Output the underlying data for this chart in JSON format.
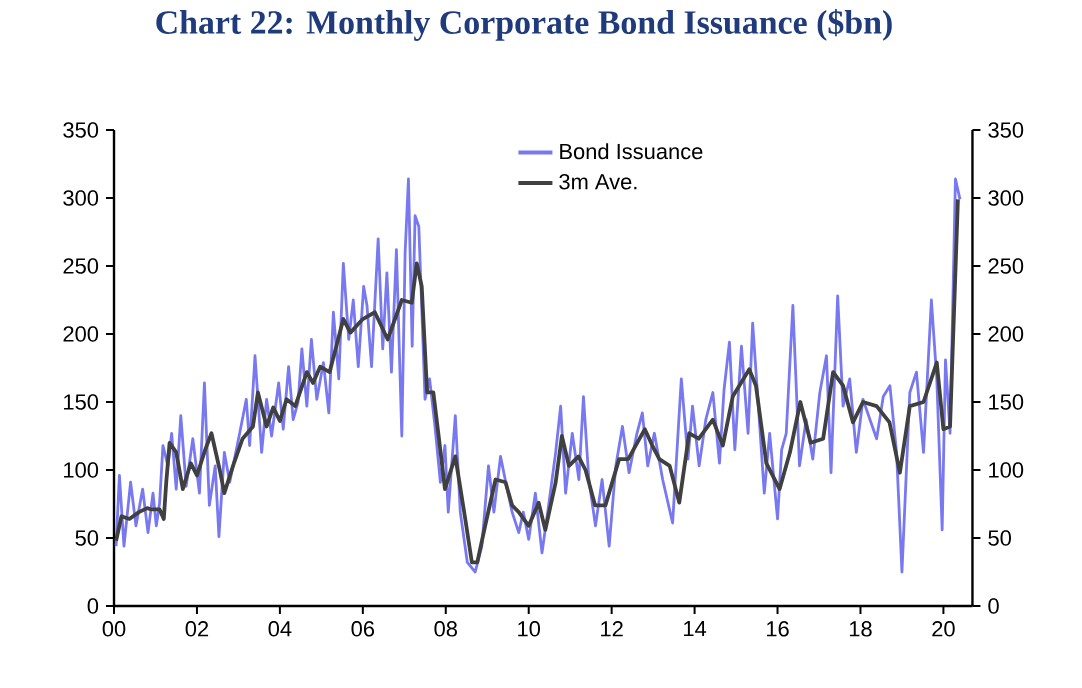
{
  "chart_data": {
    "type": "line",
    "title": "Chart 22: Monthly Corporate Bond Issuance ($bn)",
    "series": [
      {
        "name": "Bond Issuance",
        "color": "#7878f0",
        "x": [
          2000.05,
          2000.13,
          2000.24,
          2000.4,
          2000.53,
          2000.69,
          2000.82,
          2000.94,
          2001.02,
          2001.1,
          2001.18,
          2001.3,
          2001.39,
          2001.5,
          2001.61,
          2001.74,
          2001.9,
          2002.06,
          2002.18,
          2002.3,
          2002.44,
          2002.53,
          2002.66,
          2002.79,
          2003.03,
          2003.19,
          2003.27,
          2003.4,
          2003.56,
          2003.68,
          2003.8,
          2003.97,
          2004.08,
          2004.21,
          2004.32,
          2004.44,
          2004.53,
          2004.65,
          2004.76,
          2004.89,
          2005.05,
          2005.18,
          2005.29,
          2005.42,
          2005.53,
          2005.66,
          2005.77,
          2005.89,
          2006.02,
          2006.1,
          2006.21,
          2006.37,
          2006.48,
          2006.58,
          2006.69,
          2006.81,
          2006.94,
          2007.02,
          2007.1,
          2007.19,
          2007.26,
          2007.35,
          2007.5,
          2007.61,
          2007.74,
          2007.87,
          2007.98,
          2008.06,
          2008.23,
          2008.35,
          2008.52,
          2008.71,
          2008.87,
          2009.03,
          2009.16,
          2009.32,
          2009.48,
          2009.6,
          2009.76,
          2009.87,
          2010.0,
          2010.16,
          2010.32,
          2010.48,
          2010.65,
          2010.77,
          2010.89,
          2011.05,
          2011.21,
          2011.32,
          2011.45,
          2011.61,
          2011.77,
          2011.94,
          2012.1,
          2012.26,
          2012.42,
          2012.61,
          2012.74,
          2012.87,
          2013.03,
          2013.23,
          2013.47,
          2013.68,
          2013.84,
          2013.95,
          2014.11,
          2014.27,
          2014.44,
          2014.6,
          2014.71,
          2014.84,
          2014.97,
          2015.13,
          2015.29,
          2015.4,
          2015.56,
          2015.68,
          2015.81,
          2016.0,
          2016.1,
          2016.21,
          2016.37,
          2016.53,
          2016.69,
          2016.85,
          2017.02,
          2017.18,
          2017.29,
          2017.45,
          2017.58,
          2017.74,
          2017.9,
          2018.06,
          2018.23,
          2018.39,
          2018.55,
          2018.71,
          2018.87,
          2019.0,
          2019.19,
          2019.35,
          2019.52,
          2019.71,
          2019.84,
          2019.97,
          2020.05,
          2020.16,
          2020.29,
          2020.4
        ],
        "values": [
          44,
          96,
          44,
          91,
          59,
          86,
          54,
          83,
          59,
          76,
          118,
          103,
          127,
          86,
          140,
          88,
          123,
          83,
          164,
          74,
          103,
          51,
          113,
          91,
          127,
          152,
          118,
          184,
          113,
          152,
          125,
          164,
          130,
          176,
          137,
          150,
          189,
          147,
          196,
          152,
          179,
          142,
          216,
          167,
          252,
          196,
          225,
          176,
          235,
          221,
          176,
          270,
          189,
          245,
          172,
          262,
          125,
          260,
          314,
          191,
          287,
          279,
          152,
          167,
          132,
          91,
          118,
          69,
          140,
          69,
          32,
          25,
          44,
          103,
          69,
          110,
          86,
          69,
          54,
          69,
          49,
          83,
          39,
          74,
          113,
          147,
          83,
          127,
          93,
          154,
          93,
          59,
          93,
          44,
          103,
          132,
          98,
          127,
          142,
          103,
          127,
          93,
          61,
          167,
          108,
          147,
          103,
          137,
          157,
          105,
          159,
          194,
          115,
          191,
          127,
          208,
          137,
          83,
          127,
          64,
          115,
          127,
          221,
          103,
          137,
          108,
          157,
          184,
          98,
          228,
          147,
          167,
          113,
          152,
          137,
          123,
          154,
          162,
          113,
          25,
          157,
          172,
          113,
          225,
          167,
          56,
          181,
          127,
          314,
          299
        ]
      },
      {
        "name": "3m Ave.",
        "color": "#404040",
        "x": [
          2000.05,
          2000.18,
          2000.37,
          2000.6,
          2000.8,
          2000.9,
          2001.1,
          2001.2,
          2001.26,
          2001.34,
          2001.5,
          2001.66,
          2001.85,
          2002.0,
          2002.2,
          2002.35,
          2002.55,
          2002.66,
          2002.87,
          2003.1,
          2003.35,
          2003.47,
          2003.68,
          2003.84,
          2004.0,
          2004.16,
          2004.37,
          2004.65,
          2004.8,
          2004.97,
          2005.2,
          2005.53,
          2005.7,
          2006.0,
          2006.29,
          2006.6,
          2006.94,
          2007.18,
          2007.3,
          2007.42,
          2007.55,
          2007.7,
          2007.82,
          2007.98,
          2008.23,
          2008.47,
          2008.63,
          2008.76,
          2008.95,
          2009.2,
          2009.44,
          2009.6,
          2009.76,
          2010.0,
          2010.24,
          2010.4,
          2010.65,
          2010.8,
          2010.97,
          2011.2,
          2011.37,
          2011.6,
          2011.85,
          2012.18,
          2012.4,
          2012.8,
          2012.98,
          2013.15,
          2013.4,
          2013.63,
          2013.87,
          2014.1,
          2014.44,
          2014.68,
          2014.92,
          2015.32,
          2015.48,
          2015.73,
          2016.05,
          2016.3,
          2016.55,
          2016.8,
          2017.1,
          2017.34,
          2017.58,
          2017.82,
          2018.06,
          2018.39,
          2018.7,
          2018.95,
          2019.19,
          2019.52,
          2019.84,
          2020.0,
          2020.16,
          2020.35
        ],
        "values": [
          48,
          66,
          64,
          69,
          72,
          71,
          71,
          64,
          91,
          120,
          113,
          86,
          105,
          96,
          115,
          127,
          100,
          83,
          103,
          123,
          132,
          157,
          132,
          146,
          136,
          152,
          147,
          172,
          164,
          176,
          172,
          211,
          201,
          211,
          216,
          196,
          225,
          223,
          252,
          235,
          157,
          157,
          127,
          86,
          110,
          64,
          32,
          32,
          59,
          93,
          91,
          74,
          69,
          59,
          76,
          56,
          91,
          125,
          103,
          110,
          100,
          74,
          74,
          108,
          108,
          130,
          118,
          108,
          103,
          76,
          127,
          123,
          137,
          118,
          154,
          174,
          162,
          105,
          86,
          113,
          150,
          120,
          123,
          172,
          162,
          135,
          150,
          147,
          135,
          98,
          147,
          150,
          179,
          130,
          132,
          299
        ]
      }
    ],
    "xlim": [
      2000,
      2020.7
    ],
    "xticks": [
      {
        "value": 2000,
        "label": "00"
      },
      {
        "value": 2002,
        "label": "02"
      },
      {
        "value": 2004,
        "label": "04"
      },
      {
        "value": 2006,
        "label": "06"
      },
      {
        "value": 2008,
        "label": "08"
      },
      {
        "value": 2010,
        "label": "10"
      },
      {
        "value": 2012,
        "label": "12"
      },
      {
        "value": 2014,
        "label": "14"
      },
      {
        "value": 2016,
        "label": "16"
      },
      {
        "value": 2018,
        "label": "18"
      },
      {
        "value": 2020,
        "label": "20"
      }
    ],
    "ylim": [
      0,
      350
    ],
    "yticks": [
      0,
      50,
      100,
      150,
      200,
      250,
      300,
      350
    ],
    "y2lim": [
      0,
      350
    ],
    "y2ticks": [
      0,
      50,
      100,
      150,
      200,
      250,
      300,
      350
    ],
    "legend": "top",
    "grid": false,
    "marker": "none",
    "line_style": "solid"
  }
}
